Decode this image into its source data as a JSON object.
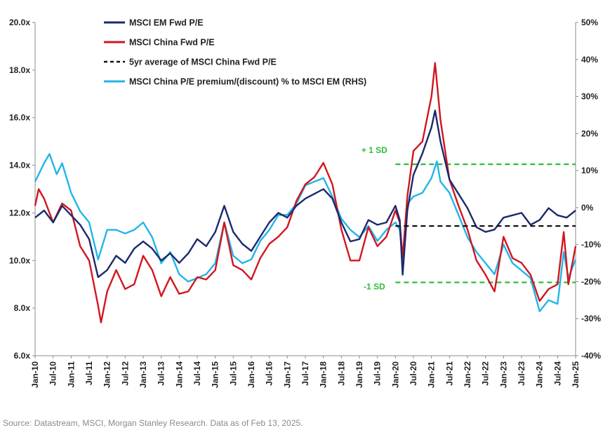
{
  "source_note": "Source: Datastream, MSCI, Morgan Stanley Research. Data as of Feb 13, 2025.",
  "colors": {
    "em": "#1b2a6b",
    "china": "#d2161f",
    "avg": "#111111",
    "premium": "#21b5ea",
    "sd": "#2bbd3b"
  },
  "chart_data": {
    "type": "line",
    "left_axis": {
      "ylim": [
        6,
        20
      ],
      "ticks": [
        6,
        8,
        10,
        12,
        14,
        16,
        18,
        20
      ],
      "tick_labels": [
        "6.0x",
        "8.0x",
        "10.0x",
        "12.0x",
        "14.0x",
        "16.0x",
        "18.0x",
        "20.0x"
      ]
    },
    "right_axis": {
      "ylim": [
        -40,
        50
      ],
      "ticks": [
        -40,
        -30,
        -20,
        -10,
        0,
        10,
        20,
        30,
        40,
        50
      ],
      "tick_labels": [
        "-40%",
        "-30%",
        "-20%",
        "-10%",
        "0%",
        "10%",
        "20%",
        "30%",
        "40%",
        "50%"
      ]
    },
    "x_ticks": [
      "Jan-10",
      "Jul-10",
      "Jan-11",
      "Jul-11",
      "Jan-12",
      "Jul-12",
      "Jan-13",
      "Jul-13",
      "Jan-14",
      "Jul-14",
      "Jan-15",
      "Jul-15",
      "Jan-16",
      "Jul-16",
      "Jan-17",
      "Jul-17",
      "Jan-18",
      "Jul-18",
      "Jan-19",
      "Jul-19",
      "Jan-20",
      "Jul-20",
      "Jan-21",
      "Jul-21",
      "Jan-22",
      "Jul-22",
      "Jan-23",
      "Jul-23",
      "Jan-24",
      "Jul-24",
      "Jan-25"
    ],
    "legend": [
      {
        "key": "em",
        "label": "MSCI EM Fwd P/E",
        "style": "solid"
      },
      {
        "key": "china",
        "label": "MSCI China Fwd P/E",
        "style": "solid"
      },
      {
        "key": "avg",
        "label": "5yr average of MSCI China Fwd P/E",
        "style": "dashed"
      },
      {
        "key": "premium",
        "label": "MSCI China P/E premium/(discount) % to MSCI EM (RHS)",
        "style": "solid"
      }
    ],
    "sd_bands": {
      "upper": {
        "label": "+ 1 SD",
        "value_pct": 11.7,
        "x_start": 2020.0,
        "x_end": 2025.0
      },
      "lower": {
        "label": "-1 SD",
        "value_pct": -20.2,
        "x_start": 2020.0,
        "x_end": 2025.0
      }
    },
    "five_year_avg": {
      "value": 11.45,
      "x_start": 2020.0,
      "x_end": 2025.0
    },
    "series": [
      {
        "key": "em",
        "name": "MSCI EM Fwd P/E",
        "axis": "left",
        "points": [
          [
            2010.0,
            11.8
          ],
          [
            2010.25,
            12.1
          ],
          [
            2010.5,
            11.6
          ],
          [
            2010.75,
            12.3
          ],
          [
            2011.0,
            11.9
          ],
          [
            2011.25,
            11.5
          ],
          [
            2011.5,
            10.9
          ],
          [
            2011.75,
            9.3
          ],
          [
            2012.0,
            9.6
          ],
          [
            2012.25,
            10.2
          ],
          [
            2012.5,
            9.9
          ],
          [
            2012.75,
            10.5
          ],
          [
            2013.0,
            10.8
          ],
          [
            2013.25,
            10.5
          ],
          [
            2013.5,
            10.0
          ],
          [
            2013.75,
            10.3
          ],
          [
            2014.0,
            9.9
          ],
          [
            2014.25,
            10.3
          ],
          [
            2014.5,
            10.9
          ],
          [
            2014.75,
            10.6
          ],
          [
            2015.0,
            11.2
          ],
          [
            2015.25,
            12.3
          ],
          [
            2015.5,
            11.2
          ],
          [
            2015.75,
            10.7
          ],
          [
            2016.0,
            10.4
          ],
          [
            2016.25,
            11.0
          ],
          [
            2016.5,
            11.6
          ],
          [
            2016.75,
            12.0
          ],
          [
            2017.0,
            11.8
          ],
          [
            2017.25,
            12.3
          ],
          [
            2017.5,
            12.6
          ],
          [
            2017.75,
            12.8
          ],
          [
            2018.0,
            13.0
          ],
          [
            2018.25,
            12.6
          ],
          [
            2018.5,
            11.6
          ],
          [
            2018.75,
            10.8
          ],
          [
            2019.0,
            10.9
          ],
          [
            2019.25,
            11.7
          ],
          [
            2019.5,
            11.5
          ],
          [
            2019.75,
            11.6
          ],
          [
            2020.0,
            12.3
          ],
          [
            2020.12,
            11.7
          ],
          [
            2020.2,
            9.4
          ],
          [
            2020.33,
            12.1
          ],
          [
            2020.5,
            13.6
          ],
          [
            2020.75,
            14.5
          ],
          [
            2021.0,
            15.6
          ],
          [
            2021.1,
            16.3
          ],
          [
            2021.25,
            15.0
          ],
          [
            2021.5,
            13.4
          ],
          [
            2021.75,
            12.8
          ],
          [
            2022.0,
            12.2
          ],
          [
            2022.25,
            11.4
          ],
          [
            2022.5,
            11.2
          ],
          [
            2022.75,
            11.3
          ],
          [
            2023.0,
            11.8
          ],
          [
            2023.25,
            11.9
          ],
          [
            2023.5,
            12.0
          ],
          [
            2023.75,
            11.5
          ],
          [
            2024.0,
            11.7
          ],
          [
            2024.25,
            12.2
          ],
          [
            2024.5,
            11.9
          ],
          [
            2024.75,
            11.8
          ],
          [
            2025.0,
            12.1
          ]
        ]
      },
      {
        "key": "china",
        "name": "MSCI China Fwd P/E",
        "axis": "left",
        "points": [
          [
            2010.0,
            12.3
          ],
          [
            2010.1,
            13.0
          ],
          [
            2010.25,
            12.6
          ],
          [
            2010.5,
            11.6
          ],
          [
            2010.75,
            12.4
          ],
          [
            2011.0,
            12.1
          ],
          [
            2011.25,
            10.6
          ],
          [
            2011.5,
            10.0
          ],
          [
            2011.75,
            8.1
          ],
          [
            2011.83,
            7.4
          ],
          [
            2012.0,
            8.7
          ],
          [
            2012.25,
            9.6
          ],
          [
            2012.5,
            8.8
          ],
          [
            2012.75,
            9.0
          ],
          [
            2013.0,
            10.2
          ],
          [
            2013.25,
            9.6
          ],
          [
            2013.5,
            8.5
          ],
          [
            2013.75,
            9.3
          ],
          [
            2014.0,
            8.6
          ],
          [
            2014.25,
            8.7
          ],
          [
            2014.5,
            9.3
          ],
          [
            2014.75,
            9.2
          ],
          [
            2015.0,
            9.6
          ],
          [
            2015.25,
            11.6
          ],
          [
            2015.5,
            9.8
          ],
          [
            2015.75,
            9.6
          ],
          [
            2016.0,
            9.2
          ],
          [
            2016.25,
            10.1
          ],
          [
            2016.5,
            10.7
          ],
          [
            2016.75,
            11.0
          ],
          [
            2017.0,
            11.4
          ],
          [
            2017.25,
            12.5
          ],
          [
            2017.5,
            13.2
          ],
          [
            2017.75,
            13.5
          ],
          [
            2018.0,
            14.1
          ],
          [
            2018.25,
            13.2
          ],
          [
            2018.5,
            11.3
          ],
          [
            2018.75,
            10.0
          ],
          [
            2019.0,
            10.0
          ],
          [
            2019.25,
            11.4
          ],
          [
            2019.5,
            10.6
          ],
          [
            2019.75,
            11.0
          ],
          [
            2020.0,
            12.1
          ],
          [
            2020.12,
            11.6
          ],
          [
            2020.2,
            10.1
          ],
          [
            2020.33,
            12.7
          ],
          [
            2020.5,
            14.6
          ],
          [
            2020.75,
            15.0
          ],
          [
            2021.0,
            16.9
          ],
          [
            2021.1,
            18.3
          ],
          [
            2021.25,
            15.9
          ],
          [
            2021.5,
            13.4
          ],
          [
            2021.75,
            12.3
          ],
          [
            2022.0,
            11.3
          ],
          [
            2022.25,
            10.0
          ],
          [
            2022.5,
            9.4
          ],
          [
            2022.75,
            8.7
          ],
          [
            2023.0,
            11.0
          ],
          [
            2023.25,
            10.1
          ],
          [
            2023.5,
            9.9
          ],
          [
            2023.75,
            9.4
          ],
          [
            2024.0,
            8.3
          ],
          [
            2024.25,
            8.8
          ],
          [
            2024.5,
            9.0
          ],
          [
            2024.67,
            11.2
          ],
          [
            2024.8,
            9.0
          ],
          [
            2025.0,
            10.6
          ]
        ]
      },
      {
        "key": "premium",
        "name": "MSCI China P/E premium/(discount) % to MSCI EM (RHS)",
        "axis": "right",
        "points": [
          [
            2010.0,
            7.0
          ],
          [
            2010.25,
            12.0
          ],
          [
            2010.4,
            14.5
          ],
          [
            2010.6,
            9.0
          ],
          [
            2010.75,
            12.0
          ],
          [
            2011.0,
            4.0
          ],
          [
            2011.25,
            -1.0
          ],
          [
            2011.5,
            -4.0
          ],
          [
            2011.75,
            -14.0
          ],
          [
            2012.0,
            -6.0
          ],
          [
            2012.25,
            -6.0
          ],
          [
            2012.5,
            -7.0
          ],
          [
            2012.75,
            -6.0
          ],
          [
            2013.0,
            -4.0
          ],
          [
            2013.25,
            -8.0
          ],
          [
            2013.5,
            -15.0
          ],
          [
            2013.75,
            -12.0
          ],
          [
            2014.0,
            -18.0
          ],
          [
            2014.25,
            -20.0
          ],
          [
            2014.5,
            -19.0
          ],
          [
            2014.75,
            -18.0
          ],
          [
            2015.0,
            -15.0
          ],
          [
            2015.25,
            -4.0
          ],
          [
            2015.5,
            -13.0
          ],
          [
            2015.75,
            -15.0
          ],
          [
            2016.0,
            -14.0
          ],
          [
            2016.25,
            -9.0
          ],
          [
            2016.5,
            -6.0
          ],
          [
            2016.75,
            -2.0
          ],
          [
            2017.0,
            -2.0
          ],
          [
            2017.25,
            1.0
          ],
          [
            2017.5,
            6.0
          ],
          [
            2017.75,
            7.0
          ],
          [
            2018.0,
            8.0
          ],
          [
            2018.25,
            3.0
          ],
          [
            2018.5,
            -3.0
          ],
          [
            2018.75,
            -6.0
          ],
          [
            2019.0,
            -8.0
          ],
          [
            2019.25,
            -5.0
          ],
          [
            2019.5,
            -9.0
          ],
          [
            2019.75,
            -6.0
          ],
          [
            2020.0,
            -4.0
          ],
          [
            2020.12,
            -6.0
          ],
          [
            2020.2,
            -14.0
          ],
          [
            2020.33,
            1.0
          ],
          [
            2020.5,
            3.0
          ],
          [
            2020.75,
            4.0
          ],
          [
            2021.0,
            8.0
          ],
          [
            2021.15,
            12.5
          ],
          [
            2021.25,
            7.0
          ],
          [
            2021.5,
            4.0
          ],
          [
            2021.75,
            -2.0
          ],
          [
            2022.0,
            -8.0
          ],
          [
            2022.25,
            -12.0
          ],
          [
            2022.5,
            -15.0
          ],
          [
            2022.75,
            -18.0
          ],
          [
            2023.0,
            -10.0
          ],
          [
            2023.25,
            -15.0
          ],
          [
            2023.5,
            -17.0
          ],
          [
            2023.75,
            -19.0
          ],
          [
            2024.0,
            -28.0
          ],
          [
            2024.25,
            -25.0
          ],
          [
            2024.5,
            -26.0
          ],
          [
            2024.67,
            -12.0
          ],
          [
            2024.8,
            -19.0
          ],
          [
            2025.0,
            -14.0
          ]
        ]
      }
    ]
  }
}
